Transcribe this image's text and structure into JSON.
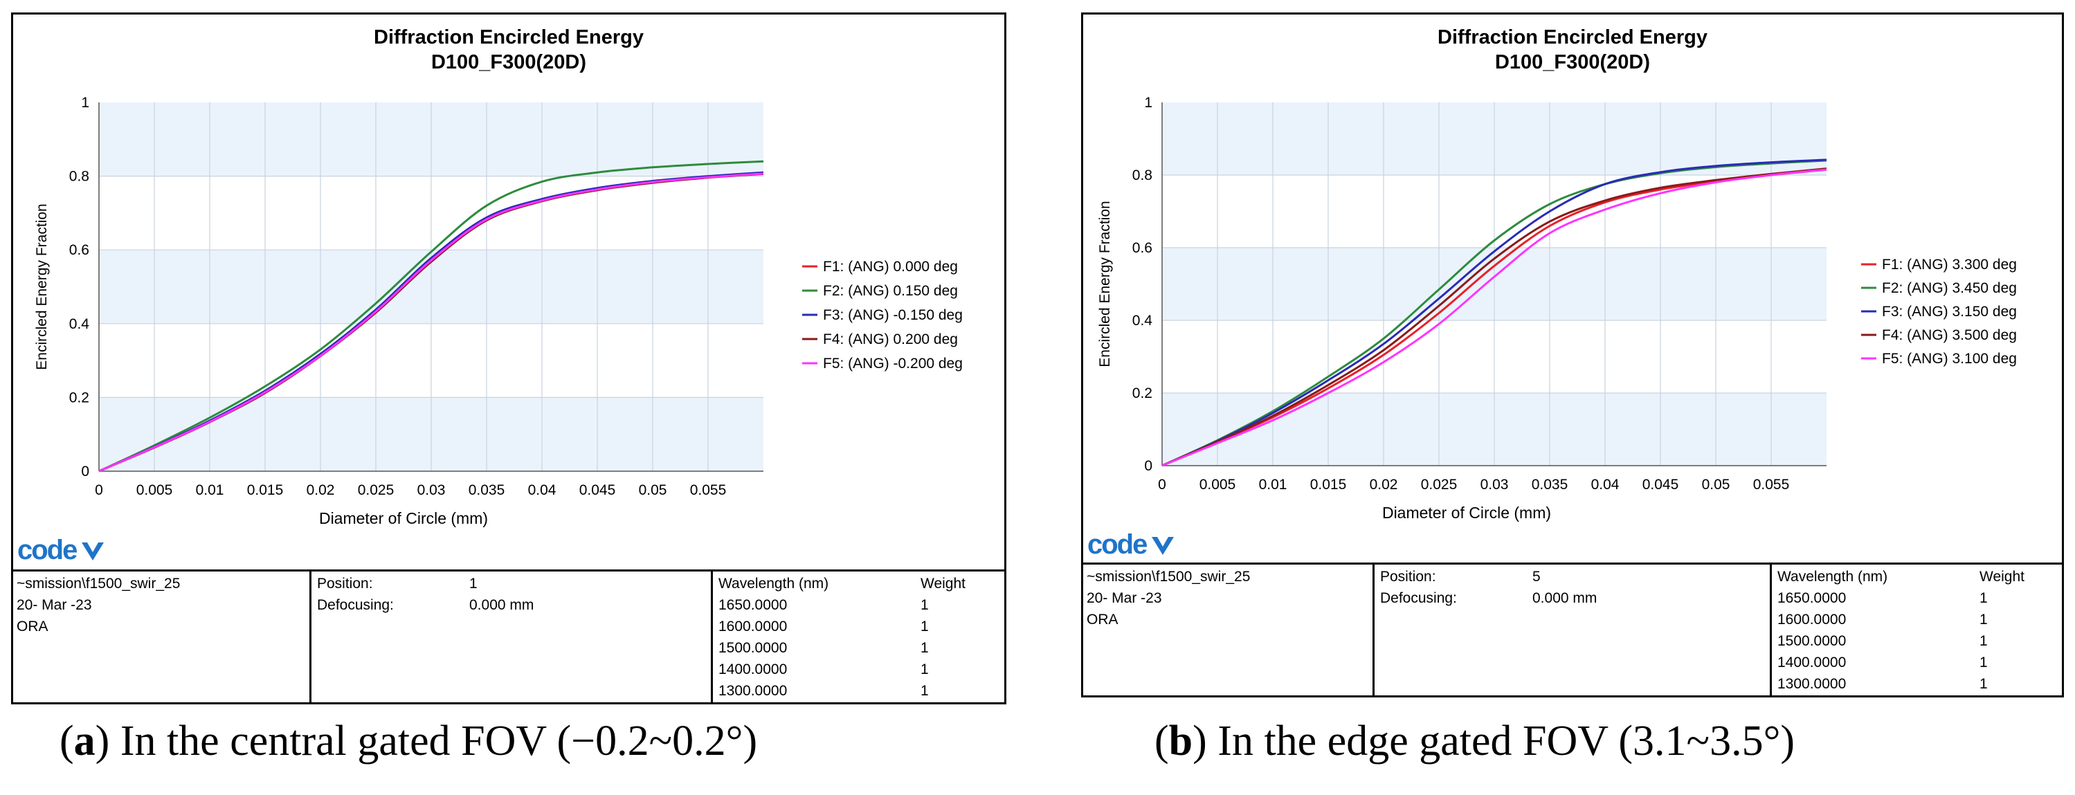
{
  "panels": [
    {
      "id": "a",
      "title_line1": "Diffraction Encircled Energy",
      "title_line2": "D100_F300(20D)",
      "logo_text": "code",
      "info": {
        "file": "~smission\\f1500_swir_25",
        "date": "20- Mar -23",
        "org": "ORA",
        "position_label": "Position:",
        "position_value": "1",
        "defocus_label": "Defocusing:",
        "defocus_value": "0.000 mm",
        "wavelength_header": "Wavelength (nm)",
        "weight_header": "Weight",
        "wavelengths": [
          {
            "wl": "1650.0000",
            "w": "1"
          },
          {
            "wl": "1600.0000",
            "w": "1"
          },
          {
            "wl": "1500.0000",
            "w": "1"
          },
          {
            "wl": "1400.0000",
            "w": "1"
          },
          {
            "wl": "1300.0000",
            "w": "1"
          }
        ]
      },
      "caption_letter": "a",
      "caption_text": "In the central gated FOV (−0.2~0.2°)"
    },
    {
      "id": "b",
      "title_line1": "Diffraction Encircled Energy",
      "title_line2": "D100_F300(20D)",
      "logo_text": "code",
      "info": {
        "file": "~smission\\f1500_swir_25",
        "date": "20- Mar -23",
        "org": "ORA",
        "position_label": "Position:",
        "position_value": "5",
        "defocus_label": "Defocusing:",
        "defocus_value": "0.000 mm",
        "wavelength_header": "Wavelength (nm)",
        "weight_header": "Weight",
        "wavelengths": [
          {
            "wl": "1650.0000",
            "w": "1"
          },
          {
            "wl": "1600.0000",
            "w": "1"
          },
          {
            "wl": "1500.0000",
            "w": "1"
          },
          {
            "wl": "1400.0000",
            "w": "1"
          },
          {
            "wl": "1300.0000",
            "w": "1"
          }
        ]
      },
      "caption_letter": "b",
      "caption_text": "In the edge gated FOV (3.1~3.5°)"
    }
  ],
  "chart_data": [
    {
      "type": "line",
      "title": "Diffraction Encircled Energy D100_F300(20D)",
      "xlabel": "Diameter of Circle (mm)",
      "ylabel": "Encircled Energy Fraction",
      "xlim": [
        0,
        0.06
      ],
      "ylim": [
        0,
        1
      ],
      "xticks": [
        "0",
        "0.005",
        "0.01",
        "0.015",
        "0.02",
        "0.025",
        "0.03",
        "0.035",
        "0.04",
        "0.045",
        "0.05",
        "0.055"
      ],
      "yticks": [
        "0",
        "0.2",
        "0.4",
        "0.6",
        "0.8",
        "1"
      ],
      "legend_position": "right",
      "x": [
        0,
        0.005,
        0.01,
        0.015,
        0.02,
        0.025,
        0.03,
        0.035,
        0.04,
        0.045,
        0.05,
        0.055,
        0.06
      ],
      "series": [
        {
          "name": "F1: (ANG) 0.000 deg",
          "color": "#e8202a",
          "values": [
            0,
            0.065,
            0.135,
            0.215,
            0.315,
            0.435,
            0.575,
            0.685,
            0.735,
            0.765,
            0.785,
            0.798,
            0.808
          ]
        },
        {
          "name": "F2: (ANG) 0.150 deg",
          "color": "#2e8b3e",
          "values": [
            0,
            0.07,
            0.145,
            0.23,
            0.33,
            0.455,
            0.595,
            0.72,
            0.785,
            0.81,
            0.824,
            0.833,
            0.84
          ]
        },
        {
          "name": "F3: (ANG) -0.150 deg",
          "color": "#2a2ab8",
          "values": [
            0,
            0.066,
            0.137,
            0.218,
            0.318,
            0.438,
            0.578,
            0.688,
            0.738,
            0.768,
            0.787,
            0.8,
            0.81
          ]
        },
        {
          "name": "F4: (ANG) 0.200 deg",
          "color": "#8b1a1a",
          "values": [
            0,
            0.064,
            0.133,
            0.212,
            0.312,
            0.43,
            0.568,
            0.68,
            0.732,
            0.762,
            0.782,
            0.796,
            0.806
          ]
        },
        {
          "name": "F5: (ANG) -0.200 deg",
          "color": "#ff33ff",
          "values": [
            0,
            0.065,
            0.134,
            0.214,
            0.313,
            0.433,
            0.572,
            0.683,
            0.734,
            0.764,
            0.784,
            0.797,
            0.807
          ]
        }
      ]
    },
    {
      "type": "line",
      "title": "Diffraction Encircled Energy D100_F300(20D)",
      "xlabel": "Diameter of Circle (mm)",
      "ylabel": "Encircled Energy Fraction",
      "xlim": [
        0,
        0.06
      ],
      "ylim": [
        0,
        1
      ],
      "xticks": [
        "0",
        "0.005",
        "0.01",
        "0.015",
        "0.02",
        "0.025",
        "0.03",
        "0.035",
        "0.04",
        "0.045",
        "0.05",
        "0.055"
      ],
      "yticks": [
        "0",
        "0.2",
        "0.4",
        "0.6",
        "0.8",
        "1"
      ],
      "legend_position": "right",
      "x": [
        0,
        0.005,
        0.01,
        0.015,
        0.02,
        0.025,
        0.03,
        0.035,
        0.04,
        0.045,
        0.05,
        0.055,
        0.06
      ],
      "series": [
        {
          "name": "F1: (ANG) 3.300 deg",
          "color": "#e8202a",
          "values": [
            0,
            0.065,
            0.133,
            0.213,
            0.305,
            0.42,
            0.55,
            0.66,
            0.725,
            0.76,
            0.782,
            0.8,
            0.815
          ]
        },
        {
          "name": "F2: (ANG) 3.450 deg",
          "color": "#2e8b3e",
          "values": [
            0,
            0.07,
            0.15,
            0.245,
            0.35,
            0.485,
            0.62,
            0.72,
            0.775,
            0.805,
            0.822,
            0.832,
            0.84
          ]
        },
        {
          "name": "F3: (ANG) 3.150 deg",
          "color": "#2a2ab8",
          "values": [
            0,
            0.068,
            0.145,
            0.235,
            0.335,
            0.46,
            0.59,
            0.7,
            0.775,
            0.808,
            0.825,
            0.835,
            0.842
          ]
        },
        {
          "name": "F4: (ANG) 3.500 deg",
          "color": "#8b1a1a",
          "values": [
            0,
            0.066,
            0.137,
            0.222,
            0.318,
            0.44,
            0.57,
            0.672,
            0.73,
            0.765,
            0.786,
            0.803,
            0.818
          ]
        },
        {
          "name": "F5: (ANG) 3.100 deg",
          "color": "#ff33ff",
          "values": [
            0,
            0.062,
            0.125,
            0.2,
            0.285,
            0.39,
            0.52,
            0.64,
            0.705,
            0.75,
            0.78,
            0.8,
            0.815
          ]
        }
      ]
    }
  ]
}
